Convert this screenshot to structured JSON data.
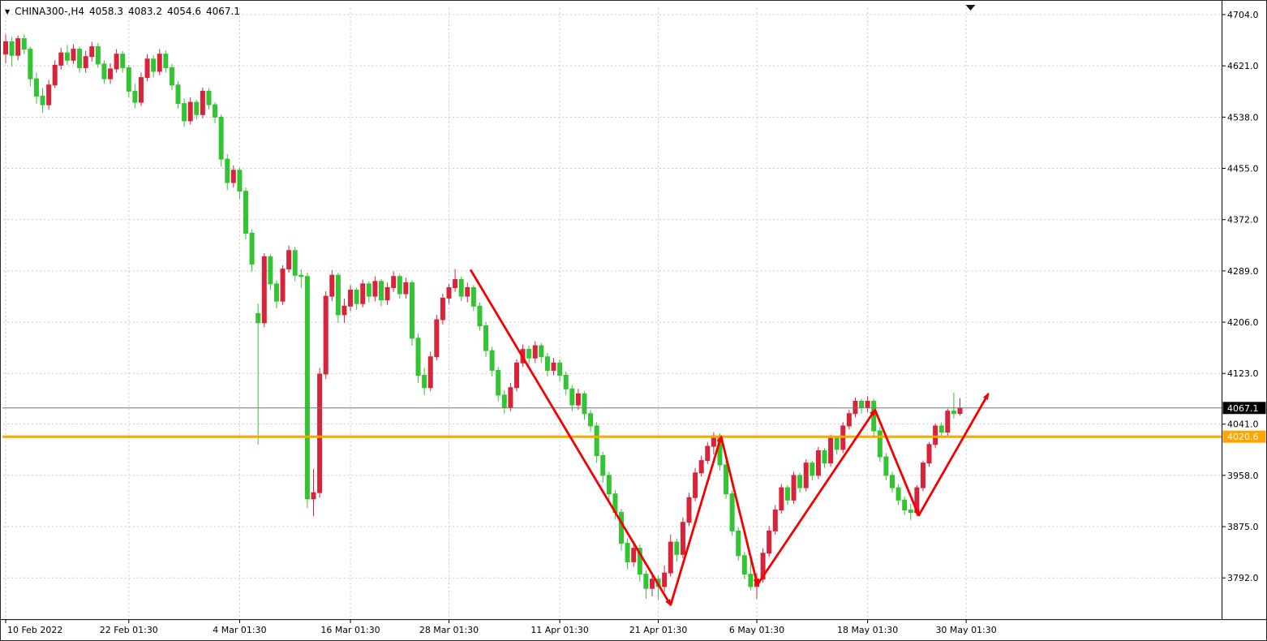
{
  "window": {
    "bg": "#ffffff",
    "border_color": "#2a2a2a"
  },
  "header": {
    "dropdown_icon": "▼",
    "symbol": "CHINA300-,H4",
    "open": "4058.3",
    "high": "4083.2",
    "low": "4054.6",
    "close": "4067.1"
  },
  "price_scale": {
    "labels": [
      "4704.0",
      "4621.0",
      "4538.0",
      "4455.0",
      "4372.0",
      "4289.0",
      "4206.0",
      "4123.0",
      "4041.0",
      "3958.0",
      "3875.0",
      "3792.0"
    ],
    "current_price_badge": {
      "value": "4067.1",
      "bg": "#000000",
      "fg": "#ffffff"
    },
    "line_badge": {
      "value": "4020.6",
      "bg": "#ffa500",
      "fg": "#ffffff"
    }
  },
  "time_scale": {
    "labels": [
      {
        "index": 0,
        "label": "10 Feb 2022"
      },
      {
        "index": 20,
        "label": "22 Feb 01:30"
      },
      {
        "index": 38,
        "label": "4 Mar 01:30"
      },
      {
        "index": 56,
        "label": "16 Mar 01:30"
      },
      {
        "index": 72,
        "label": "28 Mar 01:30"
      },
      {
        "index": 90,
        "label": "11 Apr 01:30"
      },
      {
        "index": 106,
        "label": "21 Apr 01:30"
      },
      {
        "index": 122,
        "label": "6 May 01:30"
      },
      {
        "index": 140,
        "label": "18 May 01:30"
      },
      {
        "index": 156,
        "label": "30 May 01:30"
      }
    ]
  },
  "chart_data": {
    "type": "candlestick",
    "title": "CHINA300- H4 chart",
    "symbol": "CHINA300-",
    "timeframe": "H4",
    "up_color": "#d8233a",
    "down_color": "#33c433",
    "grid_color": "#c8c8c8",
    "arrow_color": "#f40000",
    "current_price": 4067.1,
    "current_price_line_color": "#777777",
    "orange_line": {
      "price": 4020.6,
      "color": "#ffa500"
    },
    "ylim": [
      3726,
      4713
    ],
    "last_candle_ohlc": {
      "open": 4058.3,
      "high": 4083.2,
      "low": 4054.6,
      "close": 4067.1
    },
    "candles": [
      [
        4640,
        4672,
        4625,
        4660
      ],
      [
        4660,
        4668,
        4620,
        4638
      ],
      [
        4638,
        4670,
        4630,
        4665
      ],
      [
        4665,
        4672,
        4640,
        4648
      ],
      [
        4648,
        4652,
        4588,
        4600
      ],
      [
        4600,
        4610,
        4560,
        4572
      ],
      [
        4572,
        4585,
        4545,
        4558
      ],
      [
        4558,
        4598,
        4550,
        4590
      ],
      [
        4590,
        4630,
        4585,
        4622
      ],
      [
        4622,
        4650,
        4615,
        4642
      ],
      [
        4642,
        4655,
        4622,
        4630
      ],
      [
        4630,
        4656,
        4624,
        4648
      ],
      [
        4648,
        4652,
        4610,
        4618
      ],
      [
        4618,
        4645,
        4610,
        4636
      ],
      [
        4636,
        4660,
        4628,
        4652
      ],
      [
        4652,
        4658,
        4618,
        4624
      ],
      [
        4624,
        4630,
        4592,
        4600
      ],
      [
        4600,
        4625,
        4592,
        4616
      ],
      [
        4616,
        4648,
        4610,
        4640
      ],
      [
        4640,
        4645,
        4610,
        4618
      ],
      [
        4618,
        4622,
        4570,
        4580
      ],
      [
        4580,
        4592,
        4552,
        4562
      ],
      [
        4562,
        4610,
        4556,
        4602
      ],
      [
        4602,
        4640,
        4596,
        4632
      ],
      [
        4632,
        4638,
        4602,
        4612
      ],
      [
        4612,
        4648,
        4606,
        4640
      ],
      [
        4640,
        4646,
        4610,
        4618
      ],
      [
        4618,
        4624,
        4582,
        4590
      ],
      [
        4590,
        4596,
        4552,
        4560
      ],
      [
        4560,
        4568,
        4522,
        4532
      ],
      [
        4532,
        4570,
        4526,
        4562
      ],
      [
        4562,
        4566,
        4534,
        4542
      ],
      [
        4542,
        4586,
        4536,
        4580
      ],
      [
        4580,
        4585,
        4550,
        4558
      ],
      [
        4558,
        4562,
        4528,
        4538
      ],
      [
        4538,
        4542,
        4458,
        4470
      ],
      [
        4470,
        4478,
        4420,
        4432
      ],
      [
        4432,
        4460,
        4424,
        4452
      ],
      [
        4452,
        4456,
        4405,
        4418
      ],
      [
        4418,
        4424,
        4340,
        4350
      ],
      [
        4350,
        4356,
        4288,
        4300
      ],
      [
        4220,
        4236,
        4008,
        4205
      ],
      [
        4205,
        4318,
        4198,
        4312
      ],
      [
        4312,
        4316,
        4258,
        4268
      ],
      [
        4268,
        4274,
        4228,
        4240
      ],
      [
        4240,
        4298,
        4234,
        4292
      ],
      [
        4292,
        4330,
        4286,
        4322
      ],
      [
        4322,
        4328,
        4272,
        4282
      ],
      [
        4282,
        4292,
        4262,
        4280
      ],
      [
        4280,
        4286,
        3905,
        3920
      ],
      [
        3920,
        3968,
        3892,
        3930
      ],
      [
        3930,
        4132,
        3922,
        4122
      ],
      [
        4122,
        4256,
        4114,
        4248
      ],
      [
        4248,
        4290,
        4240,
        4282
      ],
      [
        4282,
        4286,
        4205,
        4218
      ],
      [
        4218,
        4244,
        4205,
        4232
      ],
      [
        4232,
        4266,
        4224,
        4258
      ],
      [
        4258,
        4262,
        4226,
        4236
      ],
      [
        4236,
        4275,
        4230,
        4268
      ],
      [
        4268,
        4272,
        4238,
        4248
      ],
      [
        4248,
        4280,
        4240,
        4272
      ],
      [
        4272,
        4276,
        4232,
        4242
      ],
      [
        4242,
        4270,
        4234,
        4262
      ],
      [
        4262,
        4288,
        4255,
        4280
      ],
      [
        4280,
        4284,
        4244,
        4252
      ],
      [
        4252,
        4278,
        4244,
        4270
      ],
      [
        4270,
        4274,
        4168,
        4180
      ],
      [
        4180,
        4188,
        4108,
        4120
      ],
      [
        4120,
        4132,
        4088,
        4100
      ],
      [
        4100,
        4158,
        4094,
        4150
      ],
      [
        4150,
        4218,
        4144,
        4210
      ],
      [
        4210,
        4252,
        4202,
        4245
      ],
      [
        4245,
        4268,
        4236,
        4262
      ],
      [
        4262,
        4292,
        4255,
        4275
      ],
      [
        4275,
        4280,
        4240,
        4248
      ],
      [
        4248,
        4270,
        4238,
        4262
      ],
      [
        4262,
        4266,
        4224,
        4232
      ],
      [
        4232,
        4238,
        4192,
        4200
      ],
      [
        4200,
        4206,
        4150,
        4160
      ],
      [
        4160,
        4166,
        4118,
        4128
      ],
      [
        4128,
        4134,
        4078,
        4088
      ],
      [
        4088,
        4096,
        4058,
        4068
      ],
      [
        4068,
        4108,
        4062,
        4100
      ],
      [
        4100,
        4146,
        4094,
        4140
      ],
      [
        4140,
        4170,
        4134,
        4162
      ],
      [
        4162,
        4168,
        4138,
        4148
      ],
      [
        4148,
        4175,
        4140,
        4168
      ],
      [
        4168,
        4172,
        4140,
        4150
      ],
      [
        4150,
        4156,
        4118,
        4128
      ],
      [
        4128,
        4148,
        4120,
        4140
      ],
      [
        4140,
        4146,
        4110,
        4120
      ],
      [
        4120,
        4126,
        4088,
        4098
      ],
      [
        4098,
        4104,
        4062,
        4072
      ],
      [
        4072,
        4098,
        4064,
        4090
      ],
      [
        4090,
        4094,
        4048,
        4058
      ],
      [
        4058,
        4064,
        4028,
        4038
      ],
      [
        4038,
        4044,
        3978,
        3990
      ],
      [
        3990,
        3996,
        3946,
        3958
      ],
      [
        3958,
        3964,
        3916,
        3928
      ],
      [
        3928,
        3934,
        3886,
        3898
      ],
      [
        3898,
        3904,
        3836,
        3848
      ],
      [
        3848,
        3856,
        3806,
        3818
      ],
      [
        3818,
        3852,
        3810,
        3840
      ],
      [
        3840,
        3846,
        3786,
        3798
      ],
      [
        3798,
        3804,
        3758,
        3775
      ],
      [
        3775,
        3800,
        3762,
        3790
      ],
      [
        3790,
        3796,
        3756,
        3778
      ],
      [
        3778,
        3812,
        3770,
        3800
      ],
      [
        3800,
        3862,
        3794,
        3850
      ],
      [
        3850,
        3856,
        3818,
        3830
      ],
      [
        3830,
        3890,
        3824,
        3882
      ],
      [
        3882,
        3930,
        3876,
        3922
      ],
      [
        3922,
        3970,
        3916,
        3962
      ],
      [
        3962,
        3990,
        3956,
        3982
      ],
      [
        3982,
        4012,
        3976,
        4005
      ],
      [
        4005,
        4028,
        3992,
        4022
      ],
      [
        4022,
        4026,
        3966,
        3975
      ],
      [
        3975,
        3982,
        3920,
        3928
      ],
      [
        3928,
        3934,
        3860,
        3868
      ],
      [
        3868,
        3874,
        3820,
        3828
      ],
      [
        3828,
        3834,
        3790,
        3798
      ],
      [
        3798,
        3822,
        3772,
        3778
      ],
      [
        3778,
        3800,
        3758,
        3790
      ],
      [
        3790,
        3840,
        3784,
        3832
      ],
      [
        3832,
        3876,
        3826,
        3868
      ],
      [
        3868,
        3910,
        3862,
        3902
      ],
      [
        3902,
        3944,
        3896,
        3938
      ],
      [
        3938,
        3942,
        3910,
        3918
      ],
      [
        3918,
        3964,
        3912,
        3958
      ],
      [
        3958,
        3962,
        3930,
        3938
      ],
      [
        3938,
        3984,
        3932,
        3978
      ],
      [
        3978,
        3982,
        3950,
        3958
      ],
      [
        3958,
        4004,
        3952,
        3998
      ],
      [
        3998,
        4002,
        3970,
        3978
      ],
      [
        3978,
        4024,
        3972,
        4018
      ],
      [
        4018,
        4022,
        3992,
        4000
      ],
      [
        4000,
        4044,
        3994,
        4038
      ],
      [
        4038,
        4064,
        4032,
        4058
      ],
      [
        4058,
        4084,
        4052,
        4078
      ],
      [
        4078,
        4082,
        4058,
        4068
      ],
      [
        4068,
        4086,
        4060,
        4078
      ],
      [
        4078,
        4082,
        4022,
        4030
      ],
      [
        4030,
        4036,
        3980,
        3988
      ],
      [
        3988,
        3994,
        3950,
        3958
      ],
      [
        3958,
        3964,
        3930,
        3938
      ],
      [
        3938,
        3944,
        3910,
        3918
      ],
      [
        3918,
        3924,
        3894,
        3902
      ],
      [
        3902,
        3912,
        3886,
        3898
      ],
      [
        3898,
        3942,
        3892,
        3938
      ],
      [
        3938,
        3982,
        3932,
        3978
      ],
      [
        3978,
        4012,
        3972,
        4008
      ],
      [
        4008,
        4042,
        4002,
        4038
      ],
      [
        4038,
        4044,
        4018,
        4028
      ],
      [
        4028,
        4066,
        4022,
        4062
      ],
      [
        4062,
        4092,
        4050,
        4058
      ],
      [
        4058.3,
        4083.2,
        4054.6,
        4067.1
      ]
    ],
    "arrows": [
      {
        "from": [
          75.5,
          4291
        ],
        "to": [
          108.0,
          3748
        ]
      },
      {
        "from": [
          108.0,
          3748
        ],
        "to": [
          116.2,
          4021
        ]
      },
      {
        "from": [
          116.2,
          4021
        ],
        "to": [
          122.1,
          3781
        ]
      },
      {
        "from": [
          122.1,
          3781
        ],
        "to": [
          141.2,
          4064
        ]
      },
      {
        "from": [
          141.2,
          4064
        ],
        "to": [
          148.3,
          3893
        ]
      },
      {
        "from": [
          148.3,
          3893
        ],
        "to": [
          159.6,
          4090
        ]
      }
    ]
  }
}
